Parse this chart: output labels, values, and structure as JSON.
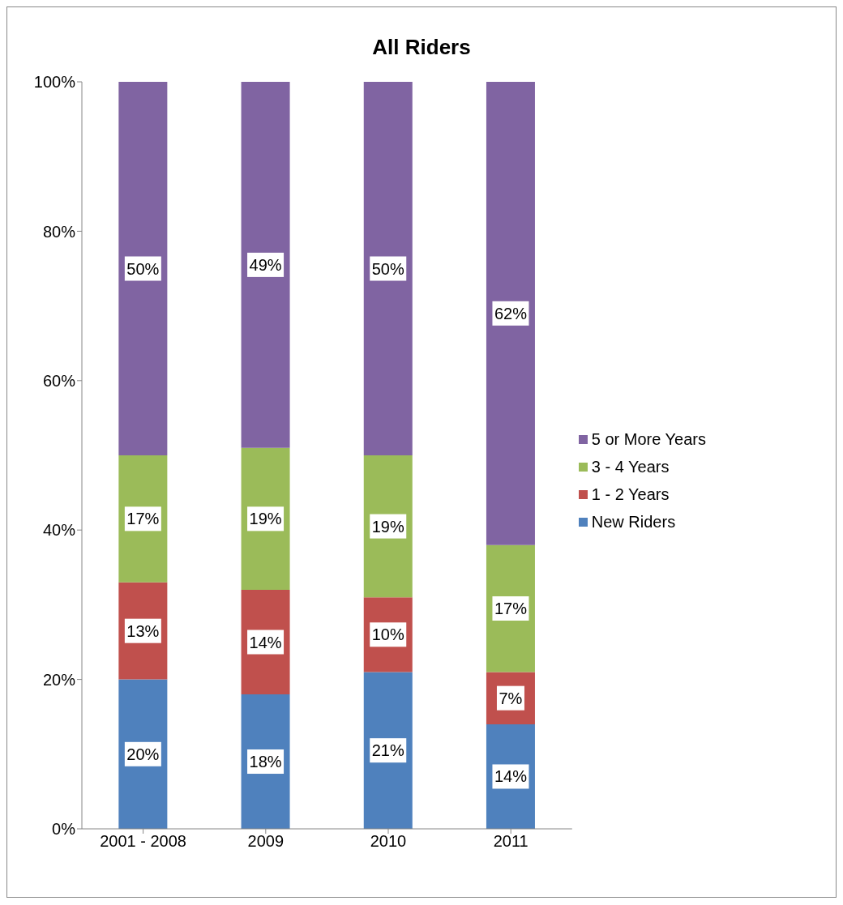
{
  "chart_data": {
    "type": "bar",
    "title": "All Riders",
    "stacked": true,
    "categories": [
      "2001 - 2008",
      "2009",
      "2010",
      "2011"
    ],
    "series": [
      {
        "name": "New Riders",
        "color": "#4f81bd",
        "values": [
          20,
          18,
          21,
          14
        ],
        "value_labels": [
          "20%",
          "18%",
          "21%",
          "14%"
        ]
      },
      {
        "name": "1 - 2 Years",
        "color": "#c0504d",
        "values": [
          13,
          14,
          10,
          7
        ],
        "value_labels": [
          "13%",
          "14%",
          "10%",
          "7%"
        ]
      },
      {
        "name": "3 - 4 Years",
        "color": "#9bbb59",
        "values": [
          17,
          19,
          19,
          17
        ],
        "value_labels": [
          "17%",
          "19%",
          "19%",
          "17%"
        ]
      },
      {
        "name": "5 or More Years",
        "color": "#8064a2",
        "values": [
          50,
          49,
          50,
          62
        ],
        "value_labels": [
          "50%",
          "49%",
          "50%",
          "62%"
        ]
      }
    ],
    "ylim": [
      0,
      100
    ],
    "yticks": [
      {
        "value": 0,
        "label": "0%"
      },
      {
        "value": 20,
        "label": "20%"
      },
      {
        "value": 40,
        "label": "40%"
      },
      {
        "value": 60,
        "label": "60%"
      },
      {
        "value": 80,
        "label": "80%"
      },
      {
        "value": 100,
        "label": "100%"
      }
    ],
    "grid": false,
    "legend": "right"
  }
}
